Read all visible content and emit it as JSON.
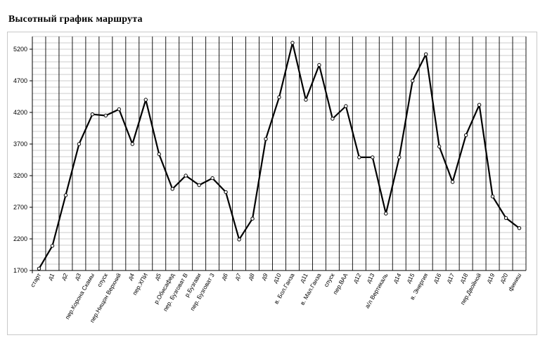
{
  "title": "Высотный график маршрута",
  "chart_data": {
    "type": "line",
    "title": "Высотный график маршрута",
    "xlabel": "",
    "ylabel": "",
    "ylim": [
      1700,
      5400
    ],
    "yticks": [
      1700,
      2200,
      2700,
      3200,
      3700,
      4200,
      4700,
      5200
    ],
    "grid": "vertical lines at every category, horizontal minor lines every 100",
    "categories": [
      "старт",
      "д1",
      "д2",
      "д3",
      "пер.Корона Скамы",
      "спуск",
      "пер.Нищон Верхний",
      "д4",
      "пер.ХПИ",
      "д5",
      "р.Обисафед",
      "пер. Бузговат В",
      "р.Бузгави",
      "пер. Бузговат 3",
      "д6",
      "д7",
      "д8",
      "д9",
      "д10",
      "в. Бол.Ганза",
      "д11",
      "в. Мал.Ганза",
      "спуск",
      "пер.ВАА",
      "д12",
      "д13",
      "а/л Вертикаль",
      "д14",
      "д15",
      "в. Энергия",
      "д16",
      "д17",
      "д18",
      "пер.Двойной",
      "д19",
      "д20",
      "финиш"
    ],
    "series": [
      {
        "values": [
          1730,
          2090,
          2890,
          3700,
          4170,
          4150,
          4250,
          3700,
          4400,
          3540,
          2990,
          3200,
          3050,
          3160,
          2940,
          2190,
          2520,
          3780,
          4440,
          5300,
          4400,
          4950,
          4100,
          4300,
          3490,
          3490,
          2600,
          3490,
          4700,
          5120,
          3660,
          3100,
          3840,
          4320,
          2870,
          2530,
          2370
        ],
        "color": "#000000"
      }
    ]
  }
}
